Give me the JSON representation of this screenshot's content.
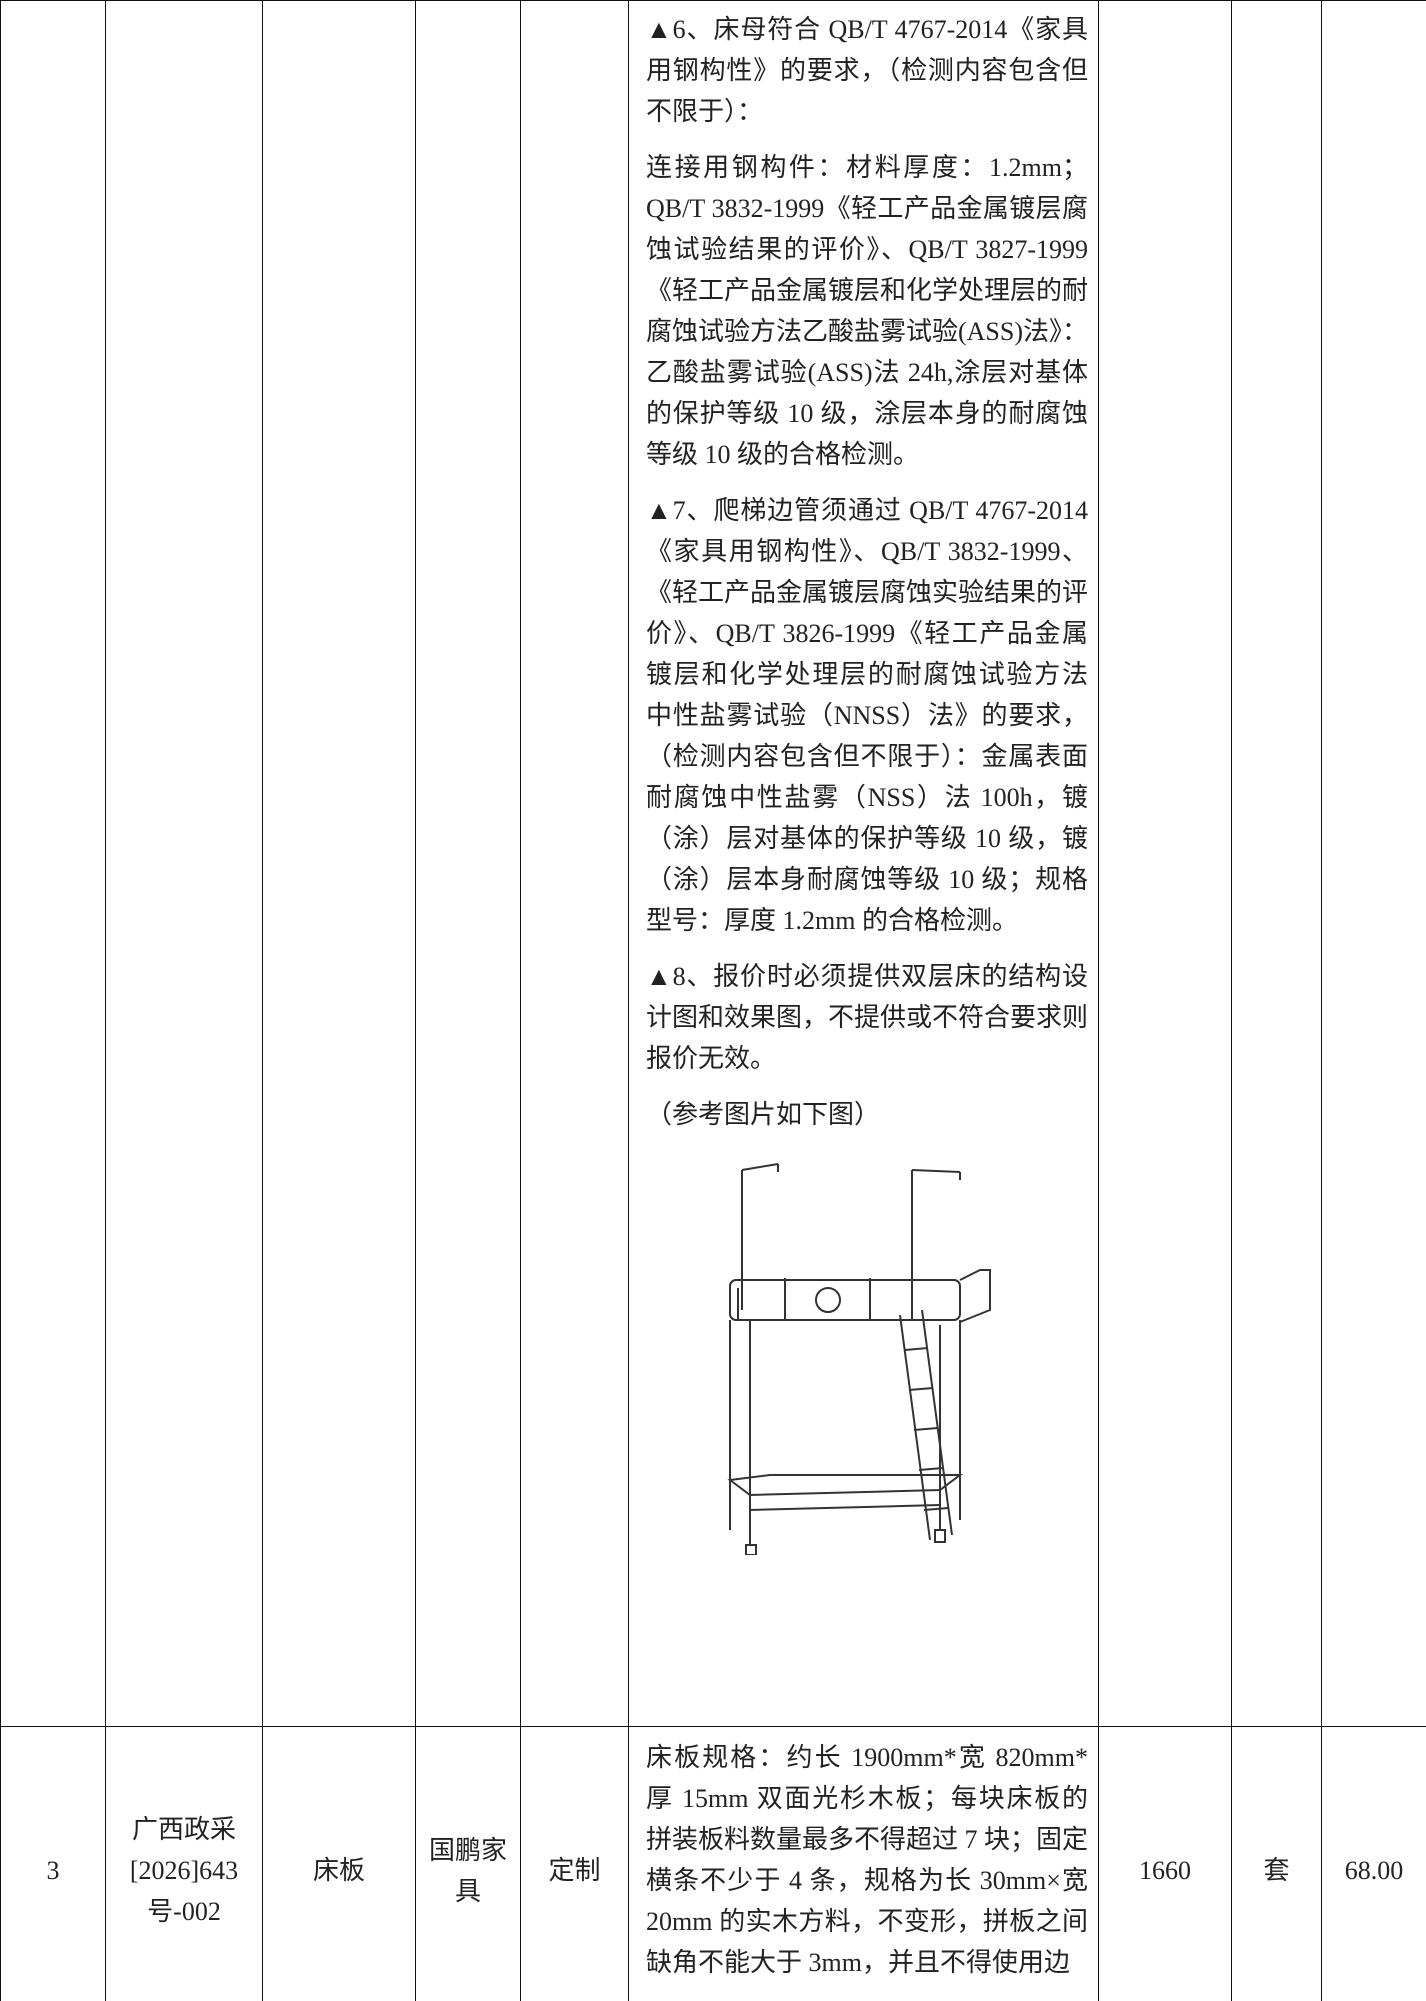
{
  "table": {
    "rows": [
      {
        "description": [
          "▲6、床母符合 QB/T 4767-2014《家具用钢构性》的要求，（检测内容包含但不限于）：",
          "连接用钢构件：材料厚度：1.2mm；QB/T 3832-1999《轻工产品金属镀层腐蚀试验结果的评价》、QB/T 3827-1999《轻工产品金属镀层和化学处理层的耐腐蚀试验方法乙酸盐雾试验(ASS)法》：乙酸盐雾试验(ASS)法 24h,涂层对基体的保护等级 10 级，涂层本身的耐腐蚀等级 10 级的合格检测。",
          "▲7、爬梯边管须通过 QB/T 4767-2014《家具用钢构性》、QB/T 3832-1999、《轻工产品金属镀层腐蚀实验结果的评价》、QB/T 3826-1999《轻工产品金属镀层和化学处理层的耐腐蚀试验方法 中性盐雾试验（NNSS）法》的要求，（检测内容包含但不限于）：金属表面耐腐蚀中性盐雾（NSS）法 100h，镀（涂）层对基体的保护等级 10 级，镀（涂）层本身耐腐蚀等级 10 级；规格型号：厚度 1.2mm 的合格检测。",
          "▲8、报价时必须提供双层床的结构设计图和效果图，不提供或不符合要求则报价无效。",
          "（参考图片如下图）"
        ]
      },
      {
        "number": "3",
        "project_code": [
          "广西政采",
          "[2026]643",
          "号-002"
        ],
        "name": "床板",
        "brand": "国鹏家具",
        "model": "定制",
        "description": "床板规格：约长 1900mm*宽 820mm*厚 15mm 双面光杉木板；每块床板的拼装板料数量最多不得超过 7 块；固定横条不少于 4 条，规格为长 30mm×宽 20mm 的实木方料，不变形，拼板之间缺角不能大于 3mm，并且不得使用边",
        "quantity": "1660",
        "unit": "套",
        "price": "68.00"
      }
    ]
  }
}
